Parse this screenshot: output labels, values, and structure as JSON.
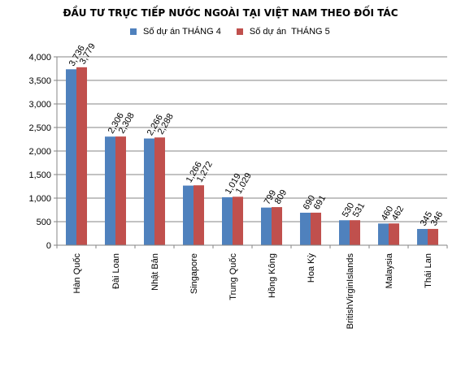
{
  "chart_data": {
    "type": "bar",
    "title": "ĐẦU TƯ TRỰC TIẾP NƯỚC NGOÀI TẠI VIỆT NAM THEO ĐỐI TÁC",
    "categories": [
      "Hàn Quốc",
      "Đài Loan",
      "Nhật Bản",
      "Singapore",
      "Trung Quốc",
      "Hồng Kông",
      "Hoa Kỳ",
      "BritishVirginIslands",
      "Malaysia",
      "Thái Lan"
    ],
    "series": [
      {
        "name": "Số dự án THÁNG 4",
        "values": [
          3736,
          2306,
          2266,
          1266,
          1019,
          799,
          690,
          530,
          460,
          345
        ],
        "labels": [
          "3,736",
          "2,306",
          "2,266",
          "1,266",
          "1,019",
          "799",
          "690",
          "530",
          "460",
          "345"
        ],
        "color": "#4f81bd"
      },
      {
        "name": "Số dự án  THÁNG 5",
        "values": [
          3779,
          2308,
          2288,
          1272,
          1029,
          809,
          691,
          531,
          462,
          346
        ],
        "labels": [
          "3,779",
          "2,308",
          "2,288",
          "1,272",
          "1,029",
          "809",
          "691",
          "531",
          "462",
          "346"
        ],
        "color": "#c0504d"
      }
    ],
    "yticks": [
      "0",
      "500",
      "1,000",
      "1,500",
      "2,000",
      "2,500",
      "3,000",
      "3,500",
      "4,000"
    ],
    "ytick_values": [
      0,
      500,
      1000,
      1500,
      2000,
      2500,
      3000,
      3500,
      4000
    ],
    "ylim": [
      0,
      4000
    ],
    "grid": true,
    "legend_position": "top"
  }
}
